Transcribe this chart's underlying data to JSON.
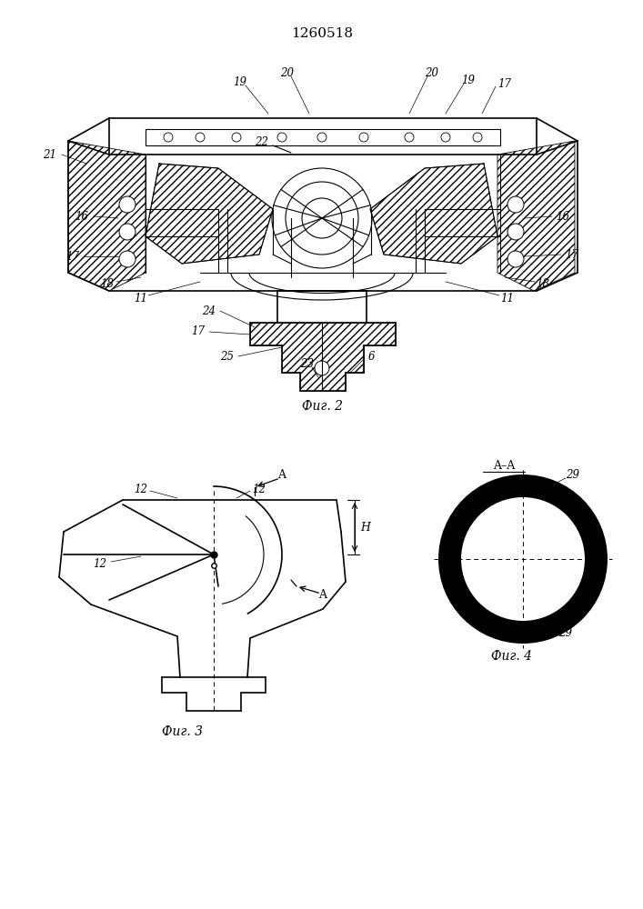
{
  "title": "1260518",
  "bg_color": "#ffffff",
  "line_color": "#000000",
  "fig2_caption": "Фиг. 2",
  "fig3_caption": "Фиг. 3",
  "fig4_caption": "Фиг. 4",
  "label_fs": 8.5,
  "caption_fs": 10,
  "title_fs": 11
}
